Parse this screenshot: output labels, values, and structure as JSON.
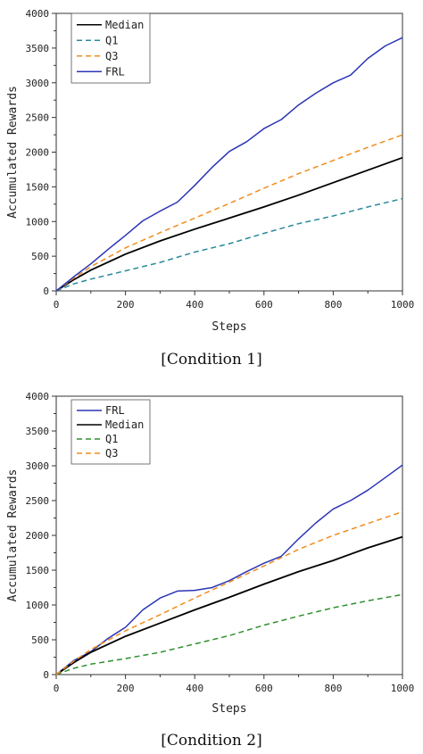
{
  "colors": {
    "Median": "#000000",
    "Q1_panel1": "#2a8a9a",
    "Q1_panel2": "#2f8f2f",
    "Q3": "#f08c1e",
    "FRL": "#2b35b5"
  },
  "chart_data": [
    {
      "type": "line",
      "caption": "[Condition 1]",
      "xlabel": "Steps",
      "ylabel": "Accumulated Rewards",
      "xlim": [
        0,
        1000
      ],
      "ylim": [
        0,
        4000
      ],
      "xticks": [
        0,
        200,
        400,
        600,
        800,
        1000
      ],
      "yticks": [
        0,
        500,
        1000,
        1500,
        2000,
        2500,
        3000,
        3500,
        4000
      ],
      "legend_position": "top-left",
      "grid": false,
      "series": [
        {
          "name": "Median",
          "style": "solid",
          "color": "#000000",
          "x": [
            0,
            50,
            100,
            200,
            300,
            400,
            500,
            600,
            700,
            800,
            900,
            1000
          ],
          "y": [
            0,
            160,
            300,
            530,
            720,
            890,
            1050,
            1210,
            1380,
            1560,
            1740,
            1920
          ]
        },
        {
          "name": "Q1",
          "style": "dashed",
          "color": "#2a8a9a",
          "x": [
            0,
            50,
            100,
            200,
            300,
            400,
            500,
            600,
            700,
            800,
            900,
            1000
          ],
          "y": [
            0,
            100,
            170,
            290,
            410,
            560,
            680,
            830,
            970,
            1080,
            1210,
            1330
          ]
        },
        {
          "name": "Q3",
          "style": "dashed",
          "color": "#f08c1e",
          "x": [
            0,
            50,
            100,
            200,
            300,
            400,
            500,
            600,
            700,
            800,
            900,
            1000
          ],
          "y": [
            0,
            180,
            350,
            620,
            840,
            1050,
            1260,
            1480,
            1690,
            1880,
            2070,
            2250
          ]
        },
        {
          "name": "FRL",
          "style": "solid",
          "color": "#2b35b5",
          "x": [
            0,
            50,
            100,
            150,
            200,
            250,
            300,
            350,
            400,
            450,
            500,
            550,
            600,
            650,
            700,
            750,
            800,
            850,
            900,
            950,
            1000
          ],
          "y": [
            0,
            200,
            390,
            600,
            800,
            1010,
            1150,
            1280,
            1520,
            1780,
            2010,
            2150,
            2340,
            2470,
            2680,
            2850,
            3000,
            3110,
            3350,
            3530,
            3650
          ]
        }
      ]
    },
    {
      "type": "line",
      "caption": "[Condition 2]",
      "xlabel": "Steps",
      "ylabel": "Accumulated Rewards",
      "xlim": [
        0,
        1000
      ],
      "ylim": [
        0,
        4000
      ],
      "xticks": [
        0,
        200,
        400,
        600,
        800,
        1000
      ],
      "yticks": [
        0,
        500,
        1000,
        1500,
        2000,
        2500,
        3000,
        3500,
        4000
      ],
      "legend_position": "top-left",
      "grid": false,
      "series": [
        {
          "name": "FRL",
          "style": "solid",
          "color": "#2b35b5",
          "x": [
            0,
            50,
            100,
            150,
            200,
            250,
            300,
            350,
            400,
            450,
            500,
            550,
            600,
            650,
            700,
            750,
            800,
            850,
            900,
            950,
            1000
          ],
          "y": [
            0,
            200,
            330,
            520,
            680,
            930,
            1100,
            1200,
            1210,
            1250,
            1350,
            1480,
            1600,
            1700,
            1950,
            2180,
            2380,
            2500,
            2650,
            2830,
            3010
          ]
        },
        {
          "name": "Median",
          "style": "solid",
          "color": "#000000",
          "x": [
            0,
            50,
            100,
            200,
            300,
            400,
            500,
            600,
            700,
            800,
            900,
            1000
          ],
          "y": [
            0,
            170,
            320,
            550,
            740,
            930,
            1110,
            1300,
            1480,
            1640,
            1820,
            1980
          ]
        },
        {
          "name": "Q1",
          "style": "dashed",
          "color": "#2f8f2f",
          "x": [
            0,
            50,
            100,
            200,
            300,
            400,
            500,
            600,
            700,
            800,
            900,
            1000
          ],
          "y": [
            0,
            90,
            150,
            230,
            320,
            440,
            560,
            710,
            840,
            960,
            1060,
            1150
          ]
        },
        {
          "name": "Q3",
          "style": "dashed",
          "color": "#f08c1e",
          "x": [
            0,
            50,
            100,
            200,
            300,
            400,
            500,
            600,
            700,
            800,
            900,
            1000
          ],
          "y": [
            0,
            190,
            360,
            630,
            860,
            1100,
            1330,
            1560,
            1800,
            2000,
            2170,
            2340
          ]
        }
      ]
    }
  ]
}
